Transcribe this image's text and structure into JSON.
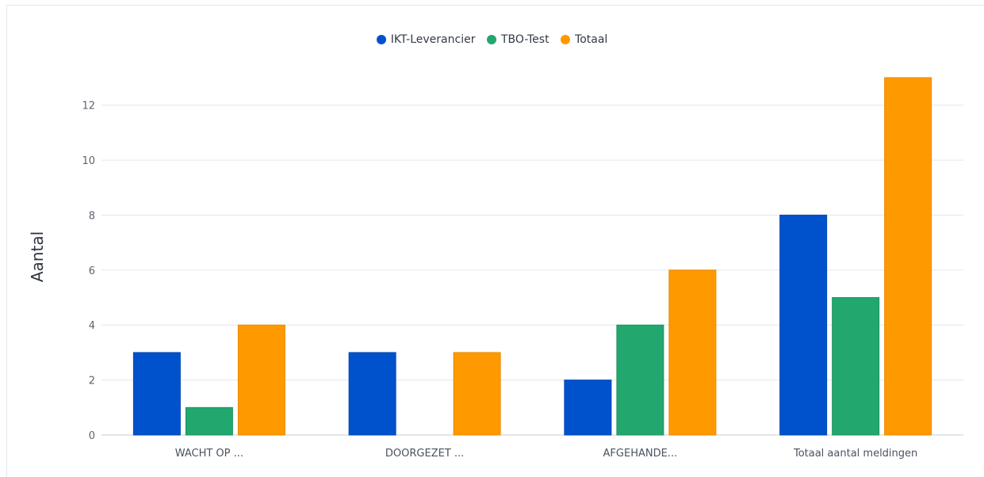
{
  "chart_data": {
    "type": "bar",
    "categories": [
      "WACHT OP ...",
      "DOORGEZET ...",
      "AFGEHANDE...",
      "Totaal aantal meldingen"
    ],
    "series": [
      {
        "name": "IKT-Leverancier",
        "color": "#0052cc",
        "border": "#0047b3",
        "values": [
          3,
          3,
          2,
          8
        ]
      },
      {
        "name": "TBO-Test",
        "color": "#22a86e",
        "border": "#1c935f",
        "values": [
          1,
          0,
          4,
          5
        ]
      },
      {
        "name": "Totaal",
        "color": "#ff9900",
        "border": "#e88a00",
        "values": [
          4,
          3,
          6,
          13
        ]
      }
    ],
    "ylabel": "Aantal",
    "xlabel": "",
    "ylim": [
      0,
      13
    ],
    "yticks": [
      0,
      2,
      4,
      6,
      8,
      10,
      12
    ],
    "grid": true,
    "legend_position": "top-center"
  }
}
